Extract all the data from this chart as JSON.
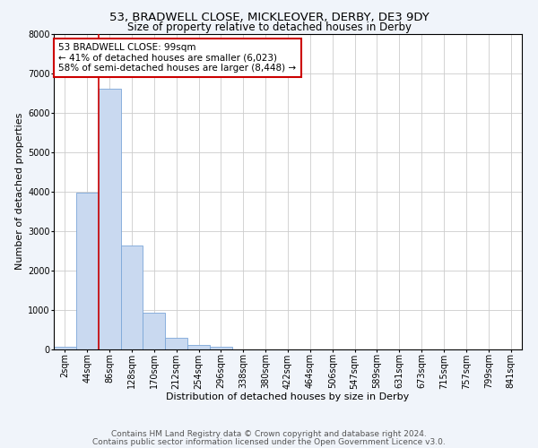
{
  "title1": "53, BRADWELL CLOSE, MICKLEOVER, DERBY, DE3 9DY",
  "title2": "Size of property relative to detached houses in Derby",
  "xlabel": "Distribution of detached houses by size in Derby",
  "ylabel": "Number of detached properties",
  "categories": [
    "2sqm",
    "44sqm",
    "86sqm",
    "128sqm",
    "170sqm",
    "212sqm",
    "254sqm",
    "296sqm",
    "338sqm",
    "380sqm",
    "422sqm",
    "464sqm",
    "506sqm",
    "547sqm",
    "589sqm",
    "631sqm",
    "673sqm",
    "715sqm",
    "757sqm",
    "799sqm",
    "841sqm"
  ],
  "values": [
    70,
    3980,
    6600,
    2630,
    940,
    290,
    110,
    70,
    0,
    0,
    0,
    0,
    0,
    0,
    0,
    0,
    0,
    0,
    0,
    0,
    0
  ],
  "bar_color": "#c9d9f0",
  "bar_edge_color": "#7ca6d8",
  "vline_color": "#cc0000",
  "vline_position": 1.5,
  "annotation_text": "53 BRADWELL CLOSE: 99sqm\n← 41% of detached houses are smaller (6,023)\n58% of semi-detached houses are larger (8,448) →",
  "annotation_box_color": "white",
  "annotation_box_edge_color": "#cc0000",
  "ylim": [
    0,
    8000
  ],
  "yticks": [
    0,
    1000,
    2000,
    3000,
    4000,
    5000,
    6000,
    7000,
    8000
  ],
  "footer_line1": "Contains HM Land Registry data © Crown copyright and database right 2024.",
  "footer_line2": "Contains public sector information licensed under the Open Government Licence v3.0.",
  "bg_color": "#f0f4fa",
  "plot_bg_color": "#ffffff",
  "title1_fontsize": 9.5,
  "title2_fontsize": 8.5,
  "annotation_fontsize": 7.5,
  "footer_fontsize": 6.5,
  "axis_label_fontsize": 8,
  "tick_fontsize": 7,
  "ytick_fontsize": 7
}
